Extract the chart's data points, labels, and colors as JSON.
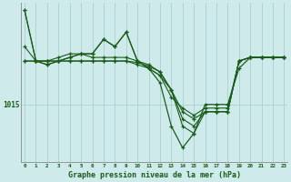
{
  "title": "Graphe pression niveau de la mer (hPa)",
  "hours": [
    0,
    1,
    2,
    3,
    4,
    5,
    6,
    7,
    8,
    9,
    10,
    11,
    12,
    13,
    14,
    15,
    16,
    17,
    18,
    19,
    20,
    21,
    22,
    23
  ],
  "background_color": "#ceeaea",
  "grid_color": "#aad0d0",
  "line_color": "#1a5c1a",
  "ylabel_value": 1015,
  "ylim": [
    1007,
    1029
  ],
  "xlim": [
    -0.3,
    23.3
  ],
  "series": {
    "s1": [
      1028,
      1021,
      1020.5,
      1021,
      1021.5,
      1022,
      1022,
      1024,
      1023,
      1025,
      1021,
      1020,
      1019,
      1017,
      1012,
      1011,
      1014,
      1014,
      1014,
      1021,
      1021.5,
      1021.5,
      1021.5,
      1021.5
    ],
    "s2": [
      1023,
      1021,
      1021,
      1021.5,
      1022,
      1022,
      1021.5,
      1021.5,
      1021.5,
      1021.5,
      1021,
      1020.5,
      1019.5,
      1017,
      1013,
      1012,
      1014,
      1014,
      1014,
      1021,
      1021.5,
      1021.5,
      1021.5,
      1021.5
    ],
    "s3": [
      1021,
      1021,
      1021,
      1021,
      1021,
      1021,
      1021,
      1021,
      1021,
      1021,
      1020.8,
      1020.3,
      1019.5,
      1017,
      1014,
      1013,
      1014,
      1014,
      1014,
      1021,
      1021.5,
      1021.5,
      1021.5,
      1021.5
    ],
    "s4": [
      1021,
      1021,
      1021,
      1021,
      1021,
      1021,
      1021,
      1021,
      1021,
      1021,
      1020.5,
      1020,
      1019,
      1016,
      1014.5,
      1013.5,
      1014.5,
      1014.5,
      1014.5,
      1021,
      1021.5,
      1021.5,
      1021.5,
      1021.5
    ],
    "smain": [
      1028,
      1021,
      1020.5,
      1021,
      1021.5,
      1022,
      1022,
      1024,
      1023,
      1025,
      1021,
      1020,
      1018,
      1012,
      1009,
      1011,
      1015,
      1015,
      1015,
      1020,
      1021.5,
      1021.5,
      1021.5,
      1021.5
    ]
  }
}
